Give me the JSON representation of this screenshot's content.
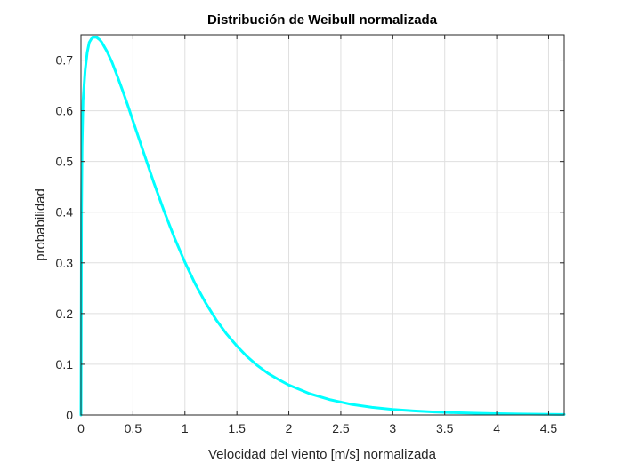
{
  "chart_data": {
    "type": "line",
    "title": "Distribución de Weibull normalizada",
    "xlabel": "Velocidad del viento [m/s] normalizada",
    "ylabel": "probabilidad",
    "xlim": [
      0,
      4.65
    ],
    "ylim": [
      0,
      0.75
    ],
    "xticks": [
      0,
      0.5,
      1,
      1.5,
      2,
      2.5,
      3,
      3.5,
      4,
      4.5
    ],
    "xtick_labels": [
      "0",
      "0.5",
      "1",
      "1.5",
      "2",
      "2.5",
      "3",
      "3.5",
      "4",
      "4.5"
    ],
    "yticks": [
      0,
      0.1,
      0.2,
      0.3,
      0.4,
      0.5,
      0.6,
      0.7
    ],
    "ytick_labels": [
      "0",
      "0.1",
      "0.2",
      "0.3",
      "0.4",
      "0.5",
      "0.6",
      "0.7"
    ],
    "grid": true,
    "series": [
      {
        "color": "#00ffff",
        "x": [
          0,
          0.005,
          0.01,
          0.02,
          0.04,
          0.06,
          0.08,
          0.1,
          0.12,
          0.15,
          0.18,
          0.2,
          0.25,
          0.3,
          0.35,
          0.4,
          0.45,
          0.5,
          0.6,
          0.7,
          0.8,
          0.9,
          1.0,
          1.1,
          1.2,
          1.3,
          1.4,
          1.5,
          1.6,
          1.7,
          1.8,
          1.9,
          2.0,
          2.2,
          2.4,
          2.6,
          2.8,
          3.0,
          3.2,
          3.4,
          3.6,
          3.8,
          4.0,
          4.2,
          4.4,
          4.6,
          4.65
        ],
        "y": [
          0,
          0.4,
          0.53,
          0.62,
          0.68,
          0.715,
          0.735,
          0.742,
          0.745,
          0.745,
          0.74,
          0.735,
          0.717,
          0.695,
          0.668,
          0.64,
          0.611,
          0.58,
          0.519,
          0.459,
          0.402,
          0.349,
          0.301,
          0.258,
          0.221,
          0.188,
          0.16,
          0.136,
          0.115,
          0.097,
          0.082,
          0.07,
          0.059,
          0.042,
          0.03,
          0.021,
          0.015,
          0.011,
          0.008,
          0.006,
          0.0045,
          0.0035,
          0.0027,
          0.002,
          0.0015,
          0.0011,
          0.001
        ]
      }
    ]
  }
}
